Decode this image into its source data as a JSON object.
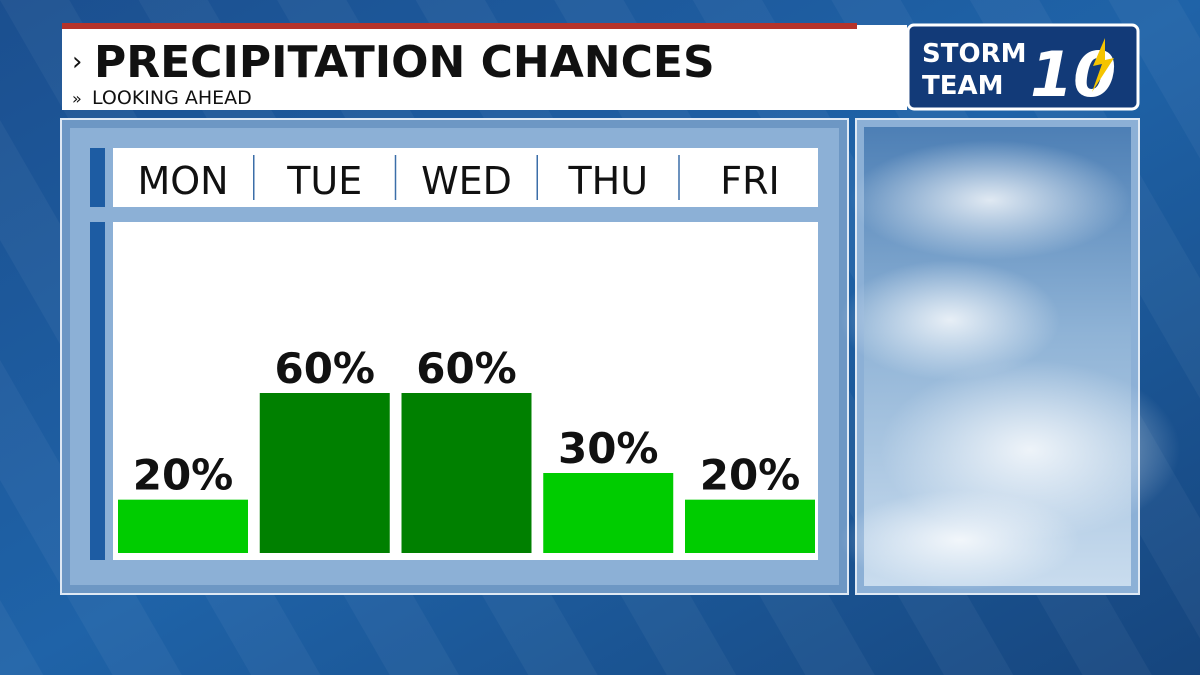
{
  "chart_data": {
    "type": "bar",
    "title": "PRECIPITATION CHANCES",
    "subtitle": "LOOKING AHEAD",
    "categories": [
      "MON",
      "TUE",
      "WED",
      "THU",
      "FRI"
    ],
    "values": [
      20,
      60,
      60,
      30,
      20
    ],
    "value_labels": [
      "20%",
      "60%",
      "60%",
      "30%",
      "20%"
    ],
    "colors": [
      "#00cc00",
      "#008000",
      "#008000",
      "#00cc00",
      "#00cc00"
    ]
  },
  "branding": {
    "line1": "STORM",
    "line2": "TEAM",
    "number": "10"
  }
}
